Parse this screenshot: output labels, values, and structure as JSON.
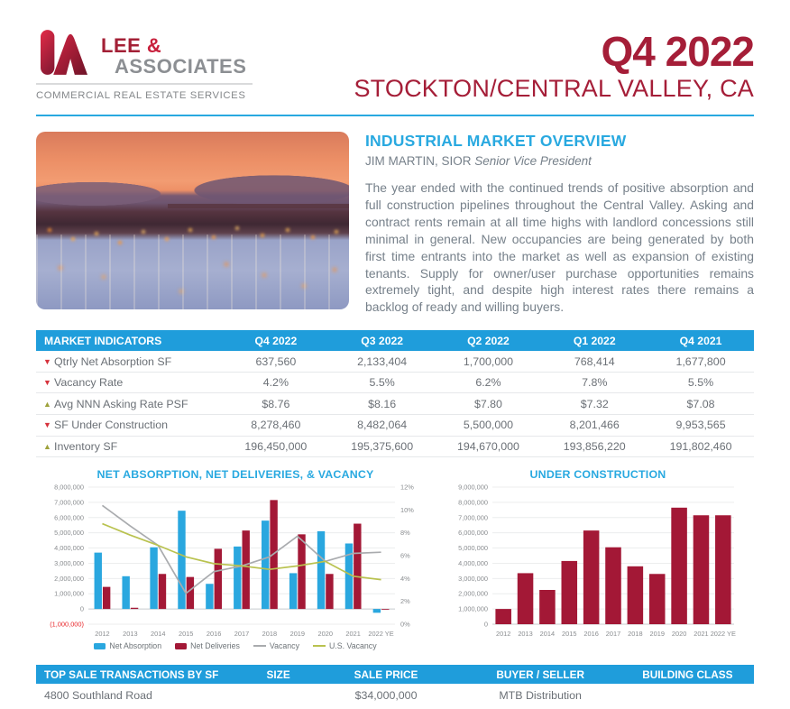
{
  "colors": {
    "accent_cyan": "#1F9DDB",
    "title_cyan": "#29A9E0",
    "brand_maroon": "#A51E38",
    "bar_blue": "#2AA7DF",
    "bar_red": "#A31836",
    "line_gray": "#A9ABAE",
    "line_olive": "#B9C24F",
    "trend_up": "#9EA23B",
    "trend_down": "#D6323C",
    "negative_red": "#E8262A"
  },
  "header": {
    "logo": {
      "lee": "LEE ",
      "amp": "&",
      "associates": "ASSOCIATES",
      "tagline": "COMMERCIAL REAL ESTATE SERVICES"
    },
    "quarter": "Q4 2022",
    "market": "STOCKTON/CENTRAL VALLEY, CA"
  },
  "overview": {
    "title": "INDUSTRIAL MARKET OVERVIEW",
    "author": "JIM MARTIN, SIOR",
    "author_title": "Senior Vice President",
    "body": "The year ended with the continued trends of positive absorption and full construction pipelines throughout the Central Valley. Asking and contract rents remain at all time highs with landlord concessions still minimal in general. New occupancies are being generated by both first time entrants into the market as well as expansion of existing tenants. Supply for owner/user purchase opportunities remains extremely tight, and despite high interest rates there remains a backlog of ready and willing buyers."
  },
  "indicators": {
    "header": [
      "MARKET INDICATORS",
      "Q4 2022",
      "Q3 2022",
      "Q2 2022",
      "Q1 2022",
      "Q4 2021"
    ],
    "rows": [
      {
        "trend": "down",
        "label": "Qtrly Net Absorption SF",
        "values": [
          "637,560",
          "2,133,404",
          "1,700,000",
          "768,414",
          "1,677,800"
        ]
      },
      {
        "trend": "down",
        "label": "Vacancy Rate",
        "values": [
          "4.2%",
          "5.5%",
          "6.2%",
          "7.8%",
          "5.5%"
        ]
      },
      {
        "trend": "up",
        "label": "Avg NNN Asking Rate PSF",
        "values": [
          "$8.76",
          "$8.16",
          "$7.80",
          "$7.32",
          "$7.08"
        ]
      },
      {
        "trend": "down",
        "label": "SF Under Construction",
        "values": [
          "8,278,460",
          "8,482,064",
          "5,500,000",
          "8,201,466",
          "9,953,565"
        ]
      },
      {
        "trend": "up",
        "label": "Inventory SF",
        "values": [
          "196,450,000",
          "195,375,600",
          "194,670,000",
          "193,856,220",
          "191,802,460"
        ]
      }
    ]
  },
  "chart_data": [
    {
      "type": "bar+line",
      "title": "NET ABSORPTION, NET DELIVERIES, & VACANCY",
      "categories": [
        "2012",
        "2013",
        "2014",
        "2015",
        "2016",
        "2017",
        "2018",
        "2019",
        "2020",
        "2021",
        "2022 YE"
      ],
      "series": [
        {
          "name": "Net Absorption",
          "type": "bar",
          "axis": "left",
          "color": "#2AA7DF",
          "values": [
            3700000,
            2150000,
            4050000,
            6450000,
            1650000,
            4100000,
            5800000,
            2350000,
            5100000,
            4300000,
            -250000
          ]
        },
        {
          "name": "Net Deliveries",
          "type": "bar",
          "axis": "left",
          "color": "#A31836",
          "values": [
            1450000,
            80000,
            2300000,
            2100000,
            3950000,
            5150000,
            7150000,
            4900000,
            2300000,
            5600000,
            0
          ]
        },
        {
          "name": "Vacancy",
          "type": "line",
          "axis": "right",
          "color": "#A9ABAE",
          "values": [
            10.4,
            8.6,
            6.9,
            2.7,
            4.6,
            5.1,
            5.9,
            7.7,
            5.5,
            6.2,
            6.3
          ]
        },
        {
          "name": "U.S. Vacancy",
          "type": "line",
          "axis": "right",
          "color": "#B9C24F",
          "values": [
            8.8,
            7.8,
            6.9,
            5.9,
            5.3,
            5.1,
            4.8,
            5.1,
            5.5,
            4.2,
            3.9
          ]
        }
      ],
      "left_axis": {
        "min": -1000000,
        "max": 8000000,
        "step": 1000000,
        "negative_label": "(1,000,000)"
      },
      "right_axis": {
        "min": 0,
        "max": 12,
        "step": 2,
        "unit": "%"
      },
      "grid": true,
      "legend_position": "bottom"
    },
    {
      "type": "bar",
      "title": "UNDER CONSTRUCTION",
      "categories": [
        "2012",
        "2013",
        "2014",
        "2015",
        "2016",
        "2017",
        "2018",
        "2019",
        "2020",
        "2021",
        "2022 YE"
      ],
      "values": [
        1000000,
        3350000,
        2250000,
        4150000,
        6150000,
        5050000,
        3800000,
        3300000,
        7650000,
        7150000,
        7150000
      ],
      "color": "#A31836",
      "ylim": [
        0,
        9000000
      ],
      "step": 1000000,
      "grid": true
    }
  ],
  "transactions": {
    "header": [
      "TOP SALE TRANSACTIONS BY SF",
      "SIZE",
      "SALE PRICE",
      "BUYER / SELLER",
      "BUILDING CLASS"
    ],
    "rows": [
      {
        "address": "4800 Southland Road",
        "size": "",
        "price": "$34,000,000",
        "buyer_seller": "MTB Distribution",
        "building_class": ""
      }
    ]
  }
}
